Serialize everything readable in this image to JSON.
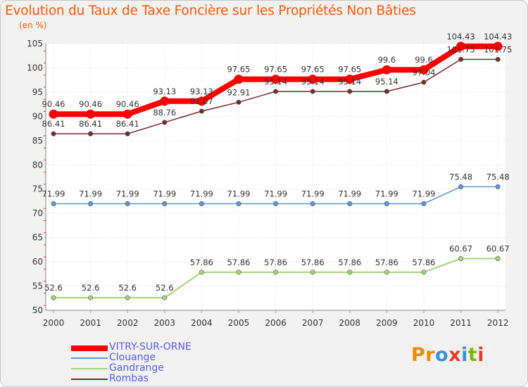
{
  "header": {
    "title": "Evolution du Taux de Taxe Foncière sur les Propriétés Non Bâties",
    "unit": "(en %)"
  },
  "brand": {
    "text": "Proxiti",
    "colors": [
      "#f08a00",
      "#f08a00",
      "#3a8fd6",
      "#e83b2a",
      "#3a8fd6",
      "#7ab800",
      "#e83b2a"
    ]
  },
  "chart_data": {
    "type": "line",
    "title": "Evolution du Taux de Taxe Foncière sur les Propriétés Non Bâties",
    "ylabel": "(en %)",
    "xlabel": "",
    "ylim": [
      50,
      105
    ],
    "yticks": [
      "50",
      "55",
      "60",
      "65",
      "70",
      "75",
      "80",
      "85",
      "90",
      "95",
      "100",
      "105"
    ],
    "categories": [
      "2000",
      "2001",
      "2002",
      "2003",
      "2004",
      "2005",
      "2006",
      "2007",
      "2008",
      "2009",
      "2010",
      "2011",
      "2012"
    ],
    "grid": true,
    "legend_position": "bottom-left",
    "series": [
      {
        "name": "VITRY-SUR-ORNE",
        "color": "#ff0000",
        "width": 8,
        "values": [
          90.46,
          90.46,
          90.46,
          93.13,
          93.13,
          97.65,
          97.65,
          97.65,
          97.65,
          99.6,
          99.6,
          104.43,
          104.43
        ],
        "labels": [
          "90.46",
          "90.46",
          "90.46",
          "93.13",
          "93.13",
          "97.65",
          "97.65",
          "97.65",
          "97.65",
          "99.6",
          "99.6",
          "104.43",
          "104.43"
        ]
      },
      {
        "name": "Clouange",
        "color": "#5b9bd5",
        "width": 1.5,
        "values": [
          71.99,
          71.99,
          71.99,
          71.99,
          71.99,
          71.99,
          71.99,
          71.99,
          71.99,
          71.99,
          71.99,
          75.48,
          75.48
        ],
        "labels": [
          "71.99",
          "71.99",
          "71.99",
          "71.99",
          "71.99",
          "71.99",
          "71.99",
          "71.99",
          "71.99",
          "71.99",
          "71.99",
          "75.48",
          "75.48"
        ]
      },
      {
        "name": "Gandrange",
        "color": "#a9d47a",
        "width": 2,
        "values": [
          52.6,
          52.6,
          52.6,
          52.6,
          57.86,
          57.86,
          57.86,
          57.86,
          57.86,
          57.86,
          57.86,
          60.67,
          60.67
        ],
        "labels": [
          "52.6",
          "52.6",
          "52.6",
          "52.6",
          "57.86",
          "57.86",
          "57.86",
          "57.86",
          "57.86",
          "57.86",
          "57.86",
          "60.67",
          "60.67"
        ]
      },
      {
        "name": "Rombas",
        "color": "#7a2a2a",
        "width": 1.5,
        "values": [
          86.41,
          86.41,
          86.41,
          88.76,
          91.07,
          92.91,
          95.14,
          95.14,
          95.14,
          95.14,
          97.04,
          101.75,
          101.75
        ],
        "labels": [
          "86.41",
          "86.41",
          "86.41",
          "88.76",
          "91.07",
          "92.91",
          "95.14",
          "95.14",
          "95.14",
          "95.14",
          "97.04",
          "101.75",
          "101.75"
        ]
      }
    ]
  }
}
